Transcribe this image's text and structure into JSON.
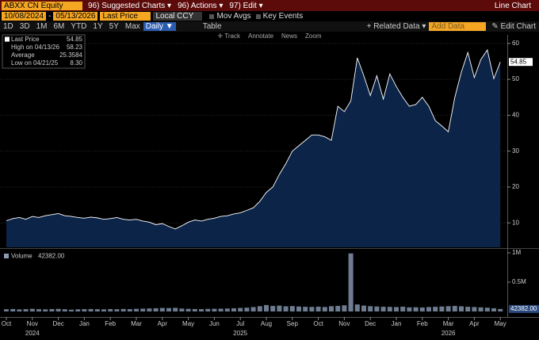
{
  "toolbar": {
    "ticker": "ABXX CN Equity",
    "menus": [
      "96) Suggested Charts ▾",
      "96) Actions ▾",
      "97) Edit ▾"
    ],
    "view_name": "Line Chart",
    "start_date": "10/08/2024",
    "date_separator": "-",
    "end_date": "05/13/2026",
    "field": "Last Price",
    "currency": "Local CCY",
    "toggles": [
      "Mov Avgs",
      "Key Events"
    ],
    "periods": [
      "1D",
      "3D",
      "1M",
      "6M",
      "YTD",
      "1Y",
      "5Y",
      "Max"
    ],
    "frequency": "Daily ▼",
    "table_button": "Table",
    "related_data": "+ Related Data ▾",
    "add_data": "Add Data",
    "edit_chart": "✎ Edit Chart",
    "tools": [
      "✛ Track",
      "Annotate",
      "News",
      "Zoom"
    ]
  },
  "chart_data": [
    {
      "type": "area",
      "stats": [
        {
          "label": "Last Price",
          "value": "54.85"
        },
        {
          "label": "High on 04/13/26",
          "value": "58.23"
        },
        {
          "label": "Average",
          "value": "25.3584"
        },
        {
          "label": "Low on 04/21/25",
          "value": "8.30"
        }
      ],
      "categories": [
        "Oct",
        null,
        null,
        null,
        "Nov",
        null,
        null,
        null,
        "Dec",
        null,
        null,
        null,
        "Jan",
        null,
        null,
        null,
        "Feb",
        null,
        null,
        null,
        "Mar",
        null,
        null,
        null,
        "Apr",
        null,
        null,
        null,
        "May",
        null,
        null,
        null,
        "Jun",
        null,
        null,
        null,
        "Jul",
        null,
        null,
        null,
        "Aug",
        null,
        null,
        null,
        "Sep",
        null,
        null,
        null,
        "Oct",
        null,
        null,
        null,
        "Nov",
        null,
        null,
        null,
        "Dec",
        null,
        null,
        null,
        "Jan",
        null,
        null,
        null,
        "Feb",
        null,
        null,
        null,
        "Mar",
        null,
        null,
        null,
        "Apr",
        null,
        null,
        null,
        "May"
      ],
      "category_groups": [
        null,
        null,
        null,
        null,
        "2024",
        null,
        null,
        null,
        null,
        null,
        null,
        null,
        null,
        null,
        null,
        null,
        null,
        null,
        null,
        null,
        null,
        null,
        null,
        null,
        null,
        null,
        null,
        null,
        null,
        null,
        null,
        null,
        null,
        null,
        null,
        null,
        "2025",
        null,
        null,
        null,
        null,
        null,
        null,
        null,
        null,
        null,
        null,
        null,
        null,
        null,
        null,
        null,
        null,
        null,
        null,
        null,
        null,
        null,
        null,
        null,
        null,
        null,
        null,
        null,
        null,
        null,
        null,
        null,
        "2026",
        null,
        null,
        null,
        null,
        null,
        null,
        null,
        null
      ],
      "series": [
        {
          "name": "Last Price",
          "color": "#ffffff",
          "fill": "#0c2448",
          "values": [
            10.6,
            11.2,
            11.5,
            11.0,
            11.8,
            11.5,
            12.0,
            12.3,
            12.6,
            12.0,
            11.8,
            11.5,
            11.3,
            11.6,
            11.4,
            11.0,
            11.2,
            11.5,
            11.0,
            10.8,
            11.0,
            10.5,
            10.2,
            9.5,
            9.8,
            9.0,
            8.3,
            9.2,
            10.2,
            10.8,
            10.5,
            11.0,
            11.3,
            11.8,
            12.0,
            12.5,
            12.8,
            13.5,
            14.2,
            16.0,
            18.5,
            20.0,
            23.5,
            26.5,
            30.0,
            31.5,
            33.0,
            34.5,
            34.5,
            34.0,
            33.0,
            42.5,
            41.0,
            44.0,
            56.0,
            51.0,
            45.5,
            51.0,
            44.5,
            51.5,
            48.0,
            45.0,
            42.5,
            43.0,
            45.0,
            42.5,
            38.5,
            37.0,
            35.4,
            45.0,
            52.0,
            57.5,
            50.5,
            55.5,
            58.2,
            50.2,
            54.85
          ]
        }
      ],
      "ylim": [
        3.2,
        62.4
      ],
      "yticks": [
        10,
        20,
        30,
        40,
        50,
        60
      ],
      "grid": true
    },
    {
      "type": "bar",
      "series": [
        {
          "name": "Volume",
          "last_label": "42382.00",
          "color": "#8a9bb5",
          "values": [
            38000,
            42000,
            35000,
            40000,
            45000,
            39000,
            36000,
            41000,
            44000,
            38000,
            30000,
            37000,
            40000,
            42000,
            39000,
            36000,
            41000,
            38000,
            43000,
            40000,
            45000,
            48000,
            52000,
            55000,
            60000,
            58000,
            62000,
            50000,
            45000,
            42000,
            40000,
            44000,
            46000,
            48000,
            50000,
            55000,
            60000,
            65000,
            75000,
            90000,
            110000,
            95000,
            100000,
            88000,
            92000,
            85000,
            80000,
            78000,
            82000,
            76000,
            90000,
            95000,
            105000,
            990000,
            120000,
            100000,
            90000,
            85000,
            80000,
            78000,
            75000,
            82000,
            70000,
            72000,
            68000,
            75000,
            80000,
            85000,
            90000,
            95000,
            88000,
            80000,
            76000,
            70000,
            65000,
            55000,
            42382
          ]
        }
      ],
      "ylim": [
        0,
        1054000
      ],
      "yticks": [
        {
          "value": 500000,
          "label": "0.5M"
        },
        {
          "value": 1000000,
          "label": "1M"
        }
      ]
    }
  ]
}
